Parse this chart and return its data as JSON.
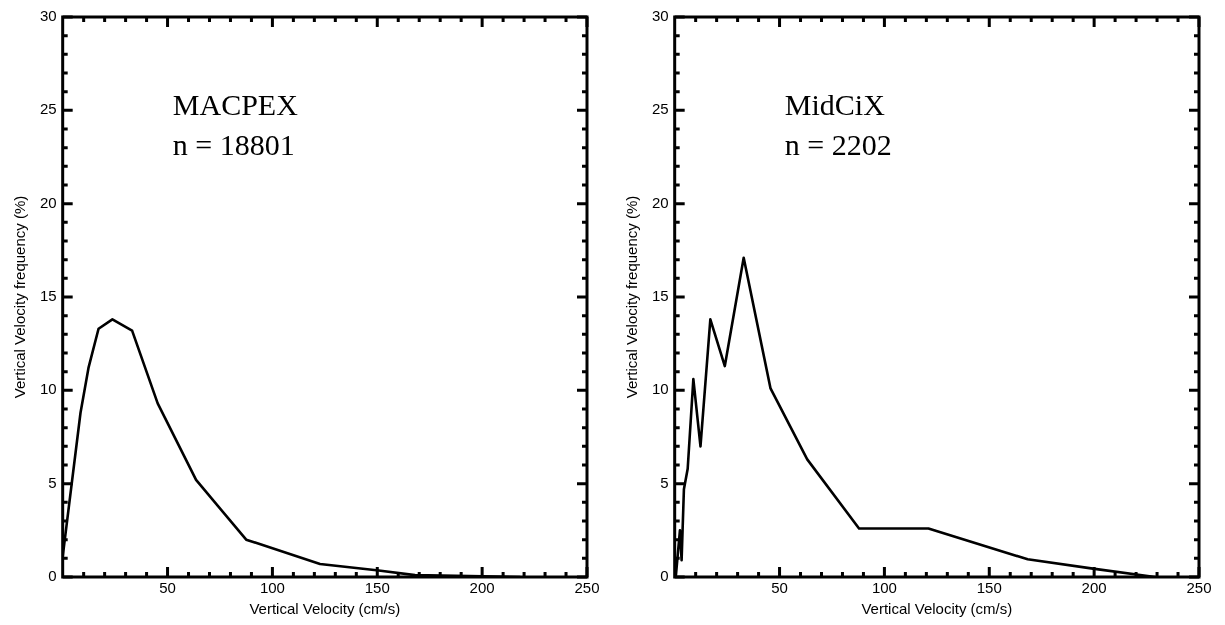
{
  "chart_data": [
    {
      "type": "line",
      "xlabel": "Vertical Velocity (cm/s)",
      "ylabel": "Vertical Velocity frequency (%)",
      "annotations": [
        "MACPEX",
        "n = 18801"
      ],
      "series": [
        {
          "color": "#000000",
          "x": [
            0,
            8.5,
            12.3,
            17.1,
            23.7,
            33.1,
            45.3,
            63.6,
            87.5,
            122.7,
            150.7,
            168,
            218
          ],
          "values": [
            1.1,
            8.8,
            11.2,
            13.3,
            13.8,
            13.2,
            9.3,
            5.2,
            2.0,
            0.7,
            0.35,
            0.1,
            0.0
          ]
        }
      ],
      "xlim": [
        0,
        250
      ],
      "ylim": [
        0,
        30
      ],
      "xticks": [
        {
          "value": 10,
          "label": null
        },
        {
          "value": 20,
          "label": null
        },
        {
          "value": 30,
          "label": null
        },
        {
          "value": 40,
          "label": null
        },
        50,
        {
          "value": 60,
          "label": null
        },
        {
          "value": 70,
          "label": null
        },
        {
          "value": 80,
          "label": null
        },
        {
          "value": 90,
          "label": null
        },
        100,
        {
          "value": 110,
          "label": null
        },
        {
          "value": 120,
          "label": null
        },
        {
          "value": 130,
          "label": null
        },
        {
          "value": 140,
          "label": null
        },
        150,
        {
          "value": 160,
          "label": null
        },
        {
          "value": 170,
          "label": null
        },
        {
          "value": 180,
          "label": null
        },
        {
          "value": 190,
          "label": null
        },
        200,
        {
          "value": 210,
          "label": null
        },
        {
          "value": 220,
          "label": null
        },
        {
          "value": 230,
          "label": null
        },
        {
          "value": 240,
          "label": null
        },
        250
      ],
      "yticks": [
        0,
        {
          "value": 1,
          "label": null
        },
        {
          "value": 2,
          "label": null
        },
        {
          "value": 3,
          "label": null
        },
        {
          "value": 4,
          "label": null
        },
        5,
        {
          "value": 6,
          "label": null
        },
        {
          "value": 7,
          "label": null
        },
        {
          "value": 8,
          "label": null
        },
        {
          "value": 9,
          "label": null
        },
        10,
        {
          "value": 11,
          "label": null
        },
        {
          "value": 12,
          "label": null
        },
        {
          "value": 13,
          "label": null
        },
        {
          "value": 14,
          "label": null
        },
        15,
        {
          "value": 16,
          "label": null
        },
        {
          "value": 17,
          "label": null
        },
        {
          "value": 18,
          "label": null
        },
        {
          "value": 19,
          "label": null
        },
        20,
        {
          "value": 21,
          "label": null
        },
        {
          "value": 22,
          "label": null
        },
        {
          "value": 23,
          "label": null
        },
        {
          "value": 24,
          "label": null
        },
        25,
        {
          "value": 26,
          "label": null
        },
        {
          "value": 27,
          "label": null
        },
        {
          "value": 28,
          "label": null
        },
        {
          "value": 29,
          "label": null
        },
        30
      ],
      "marker": "none",
      "line_style": "solid",
      "grid": false,
      "legend": false
    },
    {
      "type": "line",
      "xlabel": "Vertical Velocity (cm/s)",
      "ylabel": "Vertical Velocity frequency (%)",
      "annotations": [
        "MidCiX",
        "n = 2202"
      ],
      "series": [
        {
          "color": "#000000",
          "x": [
            0.6,
            2.5,
            3.3,
            4.4,
            6.2,
            8.9,
            12.3,
            17.0,
            23.9,
            32.9,
            45.7,
            63.2,
            87.9,
            121,
            168.3,
            199.4,
            229
          ],
          "values": [
            0.1,
            2.5,
            0.9,
            4.7,
            5.8,
            10.6,
            7.0,
            13.8,
            11.3,
            17.1,
            10.1,
            6.3,
            2.6,
            2.6,
            0.95,
            0.45,
            0.0
          ]
        }
      ],
      "xlim": [
        0,
        250
      ],
      "ylim": [
        0,
        30
      ],
      "xticks": [
        {
          "value": 10,
          "label": null
        },
        {
          "value": 20,
          "label": null
        },
        {
          "value": 30,
          "label": null
        },
        {
          "value": 40,
          "label": null
        },
        50,
        {
          "value": 60,
          "label": null
        },
        {
          "value": 70,
          "label": null
        },
        {
          "value": 80,
          "label": null
        },
        {
          "value": 90,
          "label": null
        },
        100,
        {
          "value": 110,
          "label": null
        },
        {
          "value": 120,
          "label": null
        },
        {
          "value": 130,
          "label": null
        },
        {
          "value": 140,
          "label": null
        },
        150,
        {
          "value": 160,
          "label": null
        },
        {
          "value": 170,
          "label": null
        },
        {
          "value": 180,
          "label": null
        },
        {
          "value": 190,
          "label": null
        },
        200,
        {
          "value": 210,
          "label": null
        },
        {
          "value": 220,
          "label": null
        },
        {
          "value": 230,
          "label": null
        },
        {
          "value": 240,
          "label": null
        },
        250
      ],
      "yticks": [
        0,
        {
          "value": 1,
          "label": null
        },
        {
          "value": 2,
          "label": null
        },
        {
          "value": 3,
          "label": null
        },
        {
          "value": 4,
          "label": null
        },
        5,
        {
          "value": 6,
          "label": null
        },
        {
          "value": 7,
          "label": null
        },
        {
          "value": 8,
          "label": null
        },
        {
          "value": 9,
          "label": null
        },
        10,
        {
          "value": 11,
          "label": null
        },
        {
          "value": 12,
          "label": null
        },
        {
          "value": 13,
          "label": null
        },
        {
          "value": 14,
          "label": null
        },
        15,
        {
          "value": 16,
          "label": null
        },
        {
          "value": 17,
          "label": null
        },
        {
          "value": 18,
          "label": null
        },
        {
          "value": 19,
          "label": null
        },
        20,
        {
          "value": 21,
          "label": null
        },
        {
          "value": 22,
          "label": null
        },
        {
          "value": 23,
          "label": null
        },
        {
          "value": 24,
          "label": null
        },
        25,
        {
          "value": 26,
          "label": null
        },
        {
          "value": 27,
          "label": null
        },
        {
          "value": 28,
          "label": null
        },
        {
          "value": 29,
          "label": null
        },
        30
      ],
      "marker": "none",
      "line_style": "solid",
      "grid": false,
      "legend": false
    }
  ]
}
